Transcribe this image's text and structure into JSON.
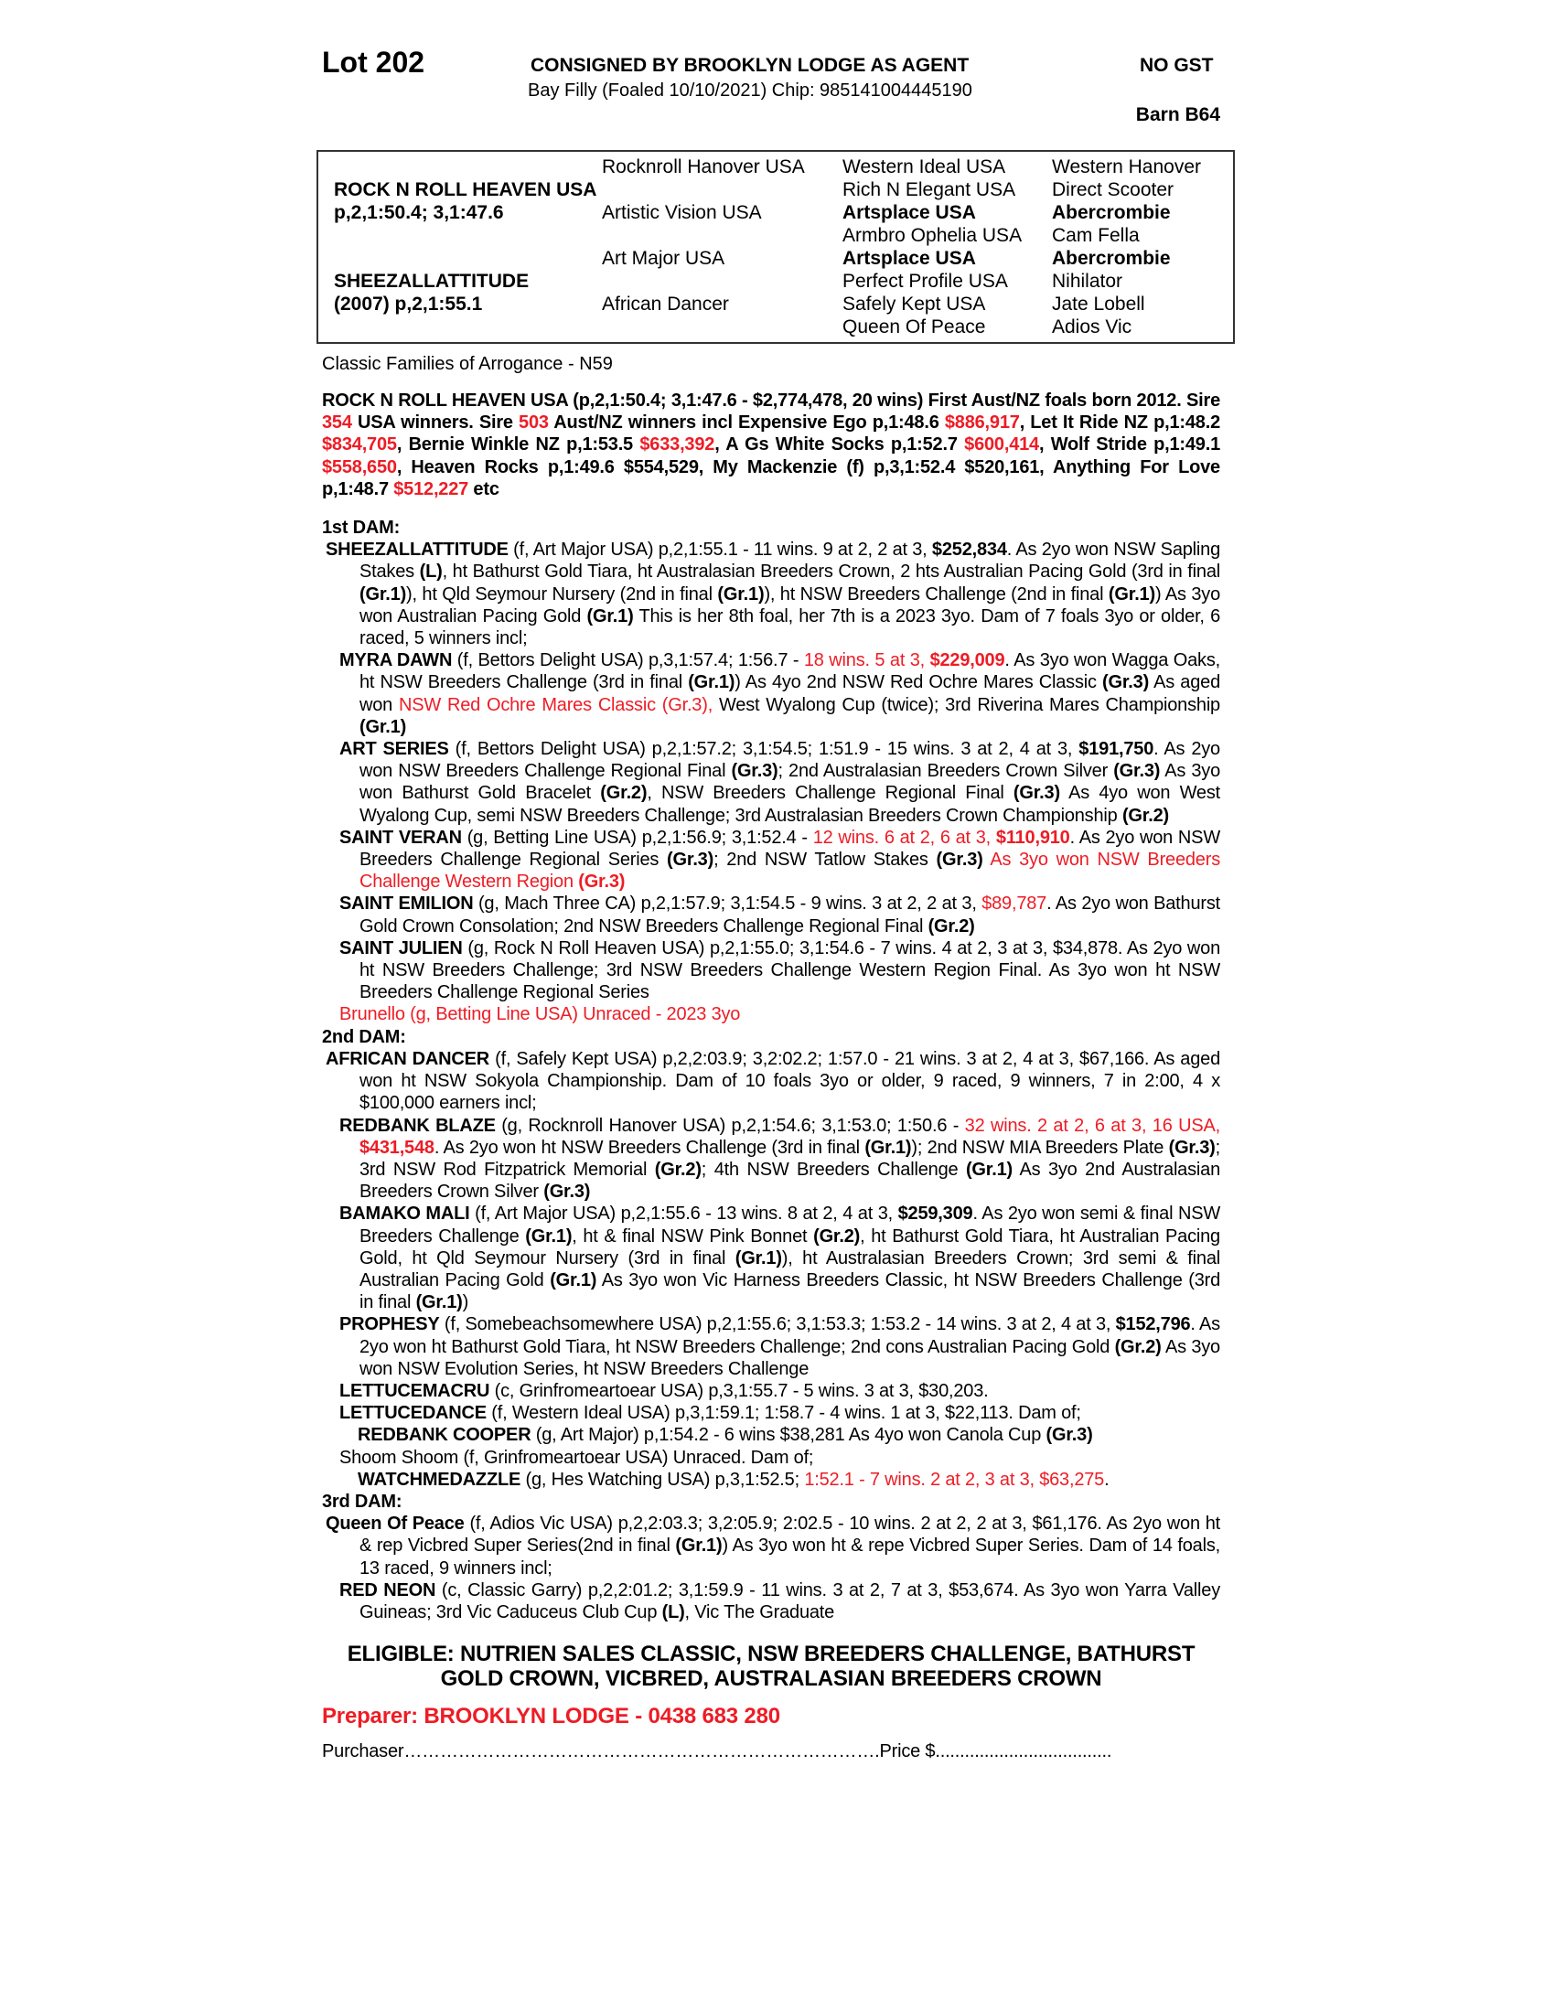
{
  "header": {
    "lot": "Lot 202",
    "consigned": "CONSIGNED BY BROOKLYN LODGE AS AGENT",
    "gst": "NO GST",
    "description": "Bay Filly (Foaled 10/10/2021) Chip: 985141004445190",
    "barn": "Barn B64"
  },
  "pedigree": [
    {
      "row": 1,
      "col": 2,
      "text": "Rocknroll Hanover USA",
      "bold": false
    },
    {
      "row": 1,
      "col": 3,
      "text": "Western Ideal USA",
      "bold": false
    },
    {
      "row": 1,
      "col": 4,
      "text": "Western Hanover",
      "bold": false
    },
    {
      "row": 2,
      "col": 1,
      "text": "ROCK N ROLL HEAVEN USA",
      "bold": true
    },
    {
      "row": 2,
      "col": 3,
      "text": "Rich N Elegant USA",
      "bold": false
    },
    {
      "row": 2,
      "col": 4,
      "text": "Direct Scooter",
      "bold": false
    },
    {
      "row": 3,
      "col": 1,
      "text": "p,2,1:50.4; 3,1:47.6",
      "bold": true
    },
    {
      "row": 3,
      "col": 2,
      "text": "Artistic Vision USA",
      "bold": false
    },
    {
      "row": 3,
      "col": 3,
      "text": "Artsplace USA",
      "bold": true
    },
    {
      "row": 3,
      "col": 4,
      "text": "Abercrombie",
      "bold": true
    },
    {
      "row": 4,
      "col": 3,
      "text": "Armbro Ophelia USA",
      "bold": false
    },
    {
      "row": 4,
      "col": 4,
      "text": "Cam Fella",
      "bold": false
    },
    {
      "row": 5,
      "col": 2,
      "text": "Art Major USA",
      "bold": false
    },
    {
      "row": 5,
      "col": 3,
      "text": "Artsplace USA",
      "bold": true
    },
    {
      "row": 5,
      "col": 4,
      "text": "Abercrombie",
      "bold": true
    },
    {
      "row": 6,
      "col": 1,
      "text": "SHEEZALLATTITUDE",
      "bold": true
    },
    {
      "row": 6,
      "col": 3,
      "text": "Perfect Profile USA",
      "bold": false
    },
    {
      "row": 6,
      "col": 4,
      "text": "Nihilator",
      "bold": false
    },
    {
      "row": 7,
      "col": 1,
      "text": "(2007) p,2,1:55.1",
      "bold": true
    },
    {
      "row": 7,
      "col": 2,
      "text": "African Dancer",
      "bold": false
    },
    {
      "row": 7,
      "col": 3,
      "text": "Safely Kept USA",
      "bold": false
    },
    {
      "row": 7,
      "col": 4,
      "text": "Jate Lobell",
      "bold": false
    },
    {
      "row": 8,
      "col": 3,
      "text": "Queen Of Peace",
      "bold": false
    },
    {
      "row": 8,
      "col": 4,
      "text": "Adios Vic",
      "bold": false
    }
  ],
  "family": "Classic Families of Arrogance - N59",
  "sire_para": [
    [
      "ROCK N ROLL HEAVEN USA (p,2,1:50.4; 3,1:47.6 - $2,774,478, 20 wins) First Aust/NZ foals born 2012. Sire ",
      ""
    ],
    [
      "354",
      "r"
    ],
    [
      " USA winners. Sire ",
      ""
    ],
    [
      "503",
      "r"
    ],
    [
      " Aust/NZ winners incl Expensive Ego p,1:48.6 ",
      ""
    ],
    [
      "$886,917",
      "r"
    ],
    [
      ", Let It Ride NZ p,1:48.2 ",
      ""
    ],
    [
      "$834,705",
      "r"
    ],
    [
      ", Bernie Winkle NZ p,1:53.5 ",
      ""
    ],
    [
      "$633,392",
      "r"
    ],
    [
      ", A Gs White Socks p,1:52.7 ",
      ""
    ],
    [
      "$600,414",
      "r"
    ],
    [
      ", Wolf Stride p,1:49.1 ",
      ""
    ],
    [
      "$558,650",
      "r"
    ],
    [
      ", Heaven Rocks p,1:49.6 $554,529, My Mackenzie (f) p,3,1:52.4 $520,161, Anything For Love p,1:48.7 ",
      ""
    ],
    [
      "$512,227",
      "r"
    ],
    [
      " etc",
      ""
    ]
  ],
  "sections": [
    {
      "heading": "1st DAM:",
      "entries": [
        {
          "level": "dam",
          "segs": [
            [
              "SHEEZALLATTITUDE",
              "b"
            ],
            [
              " (f, Art Major USA) p,2,1:55.1 - 11 wins. 9 at 2, 2 at 3, ",
              ""
            ],
            [
              "$252,834",
              "b"
            ],
            [
              ". As 2yo won NSW Sapling Stakes ",
              ""
            ],
            [
              "(L)",
              "b"
            ],
            [
              ", ht Bathurst Gold Tiara, ht Australasian Breeders Crown, 2 hts Australian Pacing Gold (3rd in final ",
              ""
            ],
            [
              "(Gr.1)",
              "b"
            ],
            [
              "), ht Qld Seymour Nursery (2nd in final ",
              ""
            ],
            [
              "(Gr.1)",
              "b"
            ],
            [
              "), ht NSW Breeders Challenge (2nd in final ",
              ""
            ],
            [
              "(Gr.1)",
              "b"
            ],
            [
              ") As 3yo won Australian Pacing Gold ",
              ""
            ],
            [
              "(Gr.1)",
              "b"
            ],
            [
              " This is her 8th foal, her 7th is a 2023 3yo. Dam of 7 foals 3yo or older, 6 raced, 5 winners incl;",
              ""
            ]
          ]
        },
        {
          "level": "prog",
          "segs": [
            [
              "MYRA DAWN",
              "b"
            ],
            [
              " (f, Bettors Delight USA) p,3,1:57.4; 1:56.7 - ",
              ""
            ],
            [
              "18 wins. 5 at 3, ",
              "r"
            ],
            [
              "$229,009",
              "br"
            ],
            [
              ". As 3yo won Wagga Oaks, ht NSW Breeders Challenge (3rd in final ",
              ""
            ],
            [
              "(Gr.1)",
              "b"
            ],
            [
              ") As 4yo 2nd NSW Red Ochre Mares Classic ",
              ""
            ],
            [
              "(Gr.3)",
              "b"
            ],
            [
              " As aged won ",
              ""
            ],
            [
              "NSW Red Ochre Mares Classic (Gr.3),",
              "r"
            ],
            [
              " West Wyalong Cup (twice); 3rd Riverina Mares Championship ",
              ""
            ],
            [
              "(Gr.1)",
              "b"
            ]
          ]
        },
        {
          "level": "prog",
          "segs": [
            [
              "ART SERIES",
              "b"
            ],
            [
              " (f, Bettors Delight USA) p,2,1:57.2; 3,1:54.5; 1:51.9 - 15 wins. 3 at 2, 4 at 3, ",
              ""
            ],
            [
              "$191,750",
              "b"
            ],
            [
              ". As 2yo won NSW Breeders Challenge Regional Final ",
              ""
            ],
            [
              "(Gr.3)",
              "b"
            ],
            [
              "; 2nd Australasian Breeders Crown Silver ",
              ""
            ],
            [
              "(Gr.3)",
              "b"
            ],
            [
              " As 3yo won Bathurst Gold Bracelet ",
              ""
            ],
            [
              "(Gr.2)",
              "b"
            ],
            [
              ", NSW Breeders Challenge Regional Final ",
              ""
            ],
            [
              "(Gr.3)",
              "b"
            ],
            [
              " As 4yo won West Wyalong Cup, semi NSW Breeders Challenge; 3rd Australasian Breeders Crown Championship ",
              ""
            ],
            [
              "(Gr.2)",
              "b"
            ]
          ]
        },
        {
          "level": "prog",
          "segs": [
            [
              "SAINT VERAN",
              "b"
            ],
            [
              " (g, Betting Line USA) p,2,1:56.9; 3,1:52.4 - ",
              ""
            ],
            [
              "12 wins. 6 at 2, 6 at 3, ",
              "r"
            ],
            [
              "$110,910",
              "br"
            ],
            [
              ". As 2yo won NSW Breeders Challenge Regional Series ",
              ""
            ],
            [
              "(Gr.3)",
              "b"
            ],
            [
              "; 2nd NSW Tatlow Stakes ",
              ""
            ],
            [
              "(Gr.3)",
              "b"
            ],
            [
              " As 3yo won NSW Breeders Challenge Western Region ",
              "r"
            ],
            [
              "(Gr.3)",
              "br"
            ]
          ]
        },
        {
          "level": "prog",
          "segs": [
            [
              "SAINT EMILION",
              "b"
            ],
            [
              " (g, Mach Three CA) p,2,1:57.9; 3,1:54.5 - 9 wins. 3 at 2, 2 at 3, ",
              ""
            ],
            [
              "$89,787",
              "r"
            ],
            [
              ". As 2yo won Bathurst Gold Crown Consolation; 2nd NSW Breeders Challenge Regional Final ",
              ""
            ],
            [
              "(Gr.2)",
              "b"
            ]
          ]
        },
        {
          "level": "prog",
          "segs": [
            [
              "SAINT JULIEN",
              "b"
            ],
            [
              " (g, Rock N Roll Heaven USA) p,2,1:55.0; 3,1:54.6 - 7 wins. 4 at 2, 3 at 3, $34,878. As 2yo won ht NSW Breeders Challenge; 3rd NSW Breeders Challenge Western Region Final. As 3yo won ht NSW Breeders Challenge Regional Series",
              ""
            ]
          ]
        },
        {
          "level": "prog",
          "segs": [
            [
              "Brunello (g, Betting Line USA) Unraced - 2023 3yo",
              "r"
            ]
          ]
        }
      ]
    },
    {
      "heading": "2nd DAM:",
      "entries": [
        {
          "level": "dam",
          "segs": [
            [
              "AFRICAN DANCER",
              "b"
            ],
            [
              " (f, Safely Kept USA) p,2,2:03.9; 3,2:02.2; 1:57.0 - 21 wins. 3 at 2, 4 at 3, $67,166. As aged won ht NSW Sokyola Championship. Dam of 10 foals 3yo or older, 9 raced, 9 winners, 7 in 2:00, 4 x $100,000 earners incl;",
              ""
            ]
          ]
        },
        {
          "level": "prog",
          "segs": [
            [
              "REDBANK BLAZE",
              "b"
            ],
            [
              " (g, Rocknroll Hanover USA) p,2,1:54.6; 3,1:53.0; 1:50.6 - ",
              ""
            ],
            [
              "32 wins. 2 at 2, 6 at 3, 16 USA, ",
              "r"
            ],
            [
              "$431,548",
              "br"
            ],
            [
              ". As 2yo won ht NSW Breeders Challenge (3rd in final ",
              ""
            ],
            [
              "(Gr.1)",
              "b"
            ],
            [
              "); 2nd NSW MIA Breeders Plate ",
              ""
            ],
            [
              "(Gr.3)",
              "b"
            ],
            [
              "; 3rd NSW Rod Fitzpatrick Memorial ",
              ""
            ],
            [
              "(Gr.2)",
              "b"
            ],
            [
              "; 4th NSW Breeders Challenge ",
              ""
            ],
            [
              "(Gr.1)",
              "b"
            ],
            [
              " As 3yo 2nd Australasian Breeders Crown Silver ",
              ""
            ],
            [
              "(Gr.3)",
              "b"
            ]
          ]
        },
        {
          "level": "prog",
          "segs": [
            [
              "BAMAKO MALI",
              "b"
            ],
            [
              " (f, Art Major USA) p,2,1:55.6 - 13 wins. 8 at 2, 4 at 3, ",
              ""
            ],
            [
              "$259,309",
              "b"
            ],
            [
              ". As 2yo won semi & final NSW Breeders Challenge ",
              ""
            ],
            [
              "(Gr.1)",
              "b"
            ],
            [
              ", ht & final NSW Pink Bonnet ",
              ""
            ],
            [
              "(Gr.2)",
              "b"
            ],
            [
              ", ht Bathurst Gold Tiara, ht Australian Pacing Gold, ht Qld Seymour Nursery (3rd in final ",
              ""
            ],
            [
              "(Gr.1)",
              "b"
            ],
            [
              "), ht Australasian Breeders Crown; 3rd semi & final Australian Pacing Gold ",
              ""
            ],
            [
              "(Gr.1)",
              "b"
            ],
            [
              " As 3yo won Vic Harness Breeders Classic, ht NSW Breeders Challenge (3rd in final ",
              ""
            ],
            [
              "(Gr.1)",
              "b"
            ],
            [
              ")",
              ""
            ]
          ]
        },
        {
          "level": "prog",
          "segs": [
            [
              "PROPHESY",
              "b"
            ],
            [
              " (f, Somebeachsomewhere USA) p,2,1:55.6; 3,1:53.3; 1:53.2 - 14 wins. 3 at 2, 4 at 3, ",
              ""
            ],
            [
              "$152,796",
              "b"
            ],
            [
              ". As 2yo won ht Bathurst Gold Tiara, ht NSW Breeders Challenge; 2nd cons Australian Pacing Gold ",
              ""
            ],
            [
              "(Gr.2)",
              "b"
            ],
            [
              " As 3yo won NSW Evolution Series, ht NSW Breeders Challenge",
              ""
            ]
          ]
        },
        {
          "level": "prog",
          "segs": [
            [
              "LETTUCEMACRU",
              "b"
            ],
            [
              " (c, Grinfromeartoear USA) p,3,1:55.7 - 5 wins. 3 at 3, $30,203.",
              ""
            ]
          ]
        },
        {
          "level": "prog",
          "segs": [
            [
              "LETTUCEDANCE",
              "b"
            ],
            [
              " (f, Western Ideal USA) p,3,1:59.1; 1:58.7 - 4 wins. 1 at 3, $22,113. Dam of;",
              ""
            ]
          ]
        },
        {
          "level": "prog2",
          "segs": [
            [
              "REDBANK COOPER",
              "b"
            ],
            [
              " (g, Art Major) p,1:54.2 - 6 wins $38,281 As 4yo won Canola Cup ",
              ""
            ],
            [
              "(Gr.3)",
              "b"
            ]
          ]
        },
        {
          "level": "prog",
          "segs": [
            [
              "Shoom Shoom (f, Grinfromeartoear USA) Unraced. Dam of;",
              ""
            ]
          ]
        },
        {
          "level": "prog2",
          "segs": [
            [
              "WATCHMEDAZZLE",
              "b"
            ],
            [
              " (g, Hes Watching USA) p,3,1:52.5; ",
              ""
            ],
            [
              "1:52.1 - 7 wins. 2 at 2, 3 at 3, $63,275",
              "r"
            ],
            [
              ".",
              ""
            ]
          ]
        }
      ]
    },
    {
      "heading": "3rd DAM:",
      "entries": [
        {
          "level": "dam",
          "segs": [
            [
              "Queen Of Peace",
              "b"
            ],
            [
              " (f, Adios Vic USA) p,2,2:03.3; 3,2:05.9; 2:02.5 - 10 wins. 2 at 2, 2 at 3, $61,176. As 2yo won ht & rep Vicbred Super Series(2nd in final ",
              ""
            ],
            [
              "(Gr.1)",
              "b"
            ],
            [
              ") As 3yo won ht & repe Vicbred Super Series. Dam of 14 foals, 13 raced, 9 winners incl;",
              ""
            ]
          ]
        },
        {
          "level": "prog",
          "segs": [
            [
              "RED NEON",
              "b"
            ],
            [
              " (c, Classic Garry) p,2,2:01.2; 3,1:59.9 - 11 wins. 3 at 2, 7 at 3, $53,674. As 3yo won Yarra Valley Guineas; 3rd Vic Caduceus Club Cup ",
              ""
            ],
            [
              "(L)",
              "b"
            ],
            [
              ", Vic The Graduate",
              ""
            ]
          ]
        }
      ]
    }
  ],
  "eligible": [
    "ELIGIBLE: NUTRIEN SALES CLASSIC, NSW BREEDERS CHALLENGE, BATHURST",
    "GOLD CROWN, VICBRED, AUSTRALASIAN BREEDERS CROWN"
  ],
  "preparer": "Preparer: BROOKLYN LODGE - 0438 683 280",
  "purchaser": "Purchaser…………………………………………………………………….Price $....................................",
  "colors": {
    "highlight": "#ee1c25",
    "text": "#000000"
  }
}
